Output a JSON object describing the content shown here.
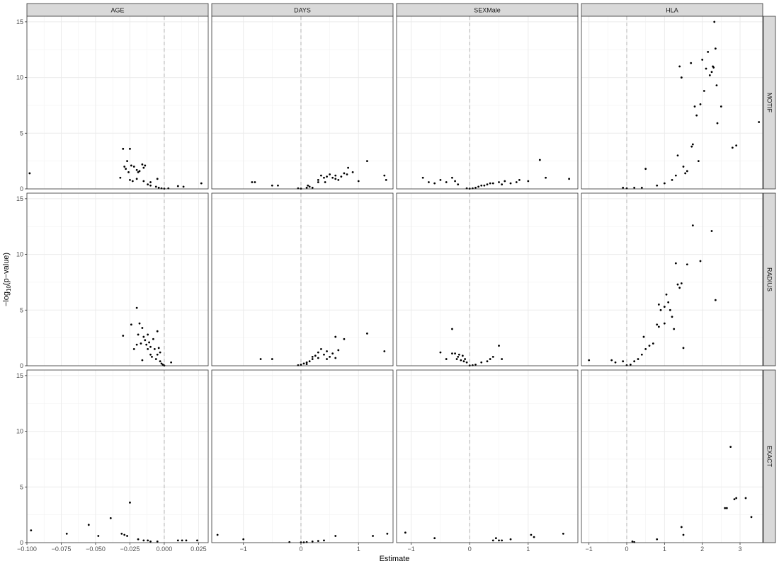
{
  "chart_data": {
    "type": "scatter",
    "xlabel": "Estimate",
    "ylabel": "-log10(p-value)",
    "ylim": [
      0,
      15.5
    ],
    "y_ticks": [
      0,
      5,
      10,
      15
    ],
    "grid": true,
    "reference_line_x": 0,
    "columns": [
      {
        "name": "AGE",
        "xlim": [
          -0.1,
          0.032
        ],
        "x_ticks": [
          -0.1,
          -0.075,
          -0.05,
          -0.025,
          0.0,
          0.025
        ],
        "x_tick_labels": [
          "-0.100",
          "-0.075",
          "-0.050",
          "-0.025",
          "0.000",
          "0.025"
        ]
      },
      {
        "name": "DAYS",
        "xlim": [
          -1.55,
          1.6
        ],
        "x_ticks": [
          -1,
          0,
          1
        ],
        "x_tick_labels": [
          "-1",
          "0",
          "1"
        ]
      },
      {
        "name": "SEXMale",
        "xlim": [
          -1.25,
          1.85
        ],
        "x_ticks": [
          -1,
          0,
          1
        ],
        "x_tick_labels": [
          "-1",
          "0",
          "1"
        ]
      },
      {
        "name": "HLA",
        "xlim": [
          -1.2,
          3.6
        ],
        "x_ticks": [
          -1,
          0,
          1,
          2,
          3
        ],
        "x_tick_labels": [
          "-1",
          "0",
          "1",
          "2",
          "3"
        ]
      }
    ],
    "rows": [
      "MOTIF",
      "RADIUS",
      "EXACT"
    ],
    "panels": {
      "MOTIF": {
        "AGE": [
          [
            -0.098,
            1.4
          ],
          [
            -0.03,
            3.6
          ],
          [
            -0.025,
            3.6
          ],
          [
            -0.029,
            2.0
          ],
          [
            -0.027,
            2.5
          ],
          [
            -0.028,
            1.8
          ],
          [
            -0.026,
            1.5
          ],
          [
            -0.024,
            2.1
          ],
          [
            -0.022,
            2.0
          ],
          [
            -0.02,
            1.7
          ],
          [
            -0.019,
            1.5
          ],
          [
            -0.018,
            1.6
          ],
          [
            -0.016,
            2.2
          ],
          [
            -0.014,
            2.1
          ],
          [
            -0.015,
            1.9
          ],
          [
            -0.025,
            0.8
          ],
          [
            -0.023,
            0.7
          ],
          [
            -0.02,
            0.9
          ],
          [
            -0.015,
            0.7
          ],
          [
            -0.01,
            0.6
          ],
          [
            -0.01,
            0.3
          ],
          [
            -0.005,
            0.9
          ],
          [
            -0.006,
            0.2
          ],
          [
            -0.004,
            0.1
          ],
          [
            -0.002,
            0.05
          ],
          [
            0.0,
            0.02
          ],
          [
            0.003,
            0.05
          ],
          [
            0.01,
            0.25
          ],
          [
            0.014,
            0.2
          ],
          [
            0.027,
            0.5
          ],
          [
            -0.032,
            1.0
          ],
          [
            -0.012,
            0.4
          ]
        ],
        "DAYS": [
          [
            -0.85,
            0.6
          ],
          [
            -0.8,
            0.6
          ],
          [
            -0.5,
            0.3
          ],
          [
            -0.4,
            0.3
          ],
          [
            -0.05,
            0.05
          ],
          [
            0.0,
            0.02
          ],
          [
            0.1,
            0.1
          ],
          [
            0.15,
            0.2
          ],
          [
            0.12,
            0.3
          ],
          [
            0.2,
            0.1
          ],
          [
            0.3,
            0.6
          ],
          [
            0.35,
            1.2
          ],
          [
            0.4,
            1.0
          ],
          [
            0.45,
            1.1
          ],
          [
            0.5,
            1.3
          ],
          [
            0.55,
            1.0
          ],
          [
            0.6,
            1.2
          ],
          [
            0.65,
            0.8
          ],
          [
            0.7,
            1.1
          ],
          [
            0.75,
            1.4
          ],
          [
            0.8,
            1.3
          ],
          [
            0.82,
            1.9
          ],
          [
            0.9,
            1.5
          ],
          [
            1.0,
            0.7
          ],
          [
            1.15,
            2.5
          ],
          [
            1.45,
            1.2
          ],
          [
            1.48,
            0.8
          ],
          [
            0.3,
            0.8
          ],
          [
            0.42,
            0.6
          ],
          [
            0.6,
            0.9
          ]
        ],
        "SEXMale": [
          [
            -0.8,
            1.0
          ],
          [
            -0.7,
            0.6
          ],
          [
            -0.6,
            0.5
          ],
          [
            -0.5,
            0.8
          ],
          [
            -0.4,
            0.6
          ],
          [
            -0.3,
            1.0
          ],
          [
            -0.25,
            0.7
          ],
          [
            -0.2,
            0.4
          ],
          [
            -0.05,
            0.05
          ],
          [
            0.0,
            0.02
          ],
          [
            0.05,
            0.05
          ],
          [
            0.15,
            0.2
          ],
          [
            0.2,
            0.3
          ],
          [
            0.25,
            0.3
          ],
          [
            0.3,
            0.4
          ],
          [
            0.35,
            0.5
          ],
          [
            0.4,
            0.5
          ],
          [
            0.5,
            0.6
          ],
          [
            0.6,
            0.7
          ],
          [
            0.7,
            0.5
          ],
          [
            0.8,
            0.6
          ],
          [
            0.85,
            0.8
          ],
          [
            1.0,
            0.7
          ],
          [
            1.2,
            2.6
          ],
          [
            1.3,
            1.0
          ],
          [
            1.7,
            0.9
          ],
          [
            0.55,
            0.4
          ],
          [
            0.1,
            0.1
          ]
        ],
        "HLA": [
          [
            -0.1,
            0.1
          ],
          [
            0.0,
            0.05
          ],
          [
            0.2,
            0.1
          ],
          [
            0.4,
            0.1
          ],
          [
            0.5,
            1.8
          ],
          [
            0.8,
            0.3
          ],
          [
            1.0,
            0.5
          ],
          [
            1.2,
            0.8
          ],
          [
            1.3,
            1.2
          ],
          [
            1.35,
            3.0
          ],
          [
            1.4,
            11.0
          ],
          [
            1.45,
            10.0
          ],
          [
            1.5,
            2.0
          ],
          [
            1.55,
            1.4
          ],
          [
            1.6,
            1.6
          ],
          [
            1.7,
            11.3
          ],
          [
            1.75,
            4.0
          ],
          [
            1.8,
            7.4
          ],
          [
            1.85,
            6.6
          ],
          [
            1.9,
            2.5
          ],
          [
            1.95,
            7.6
          ],
          [
            2.0,
            11.6
          ],
          [
            2.05,
            8.8
          ],
          [
            2.1,
            10.8
          ],
          [
            2.15,
            12.3
          ],
          [
            2.2,
            10.2
          ],
          [
            2.25,
            10.5
          ],
          [
            2.3,
            10.9
          ],
          [
            2.32,
            15.0
          ],
          [
            2.35,
            12.6
          ],
          [
            2.38,
            9.3
          ],
          [
            2.4,
            5.9
          ],
          [
            2.5,
            7.4
          ],
          [
            2.8,
            3.7
          ],
          [
            2.9,
            3.9
          ],
          [
            3.5,
            6.0
          ],
          [
            1.72,
            3.8
          ],
          [
            2.28,
            11.0
          ]
        ]
      },
      "RADIUS": {
        "AGE": [
          [
            -0.03,
            2.7
          ],
          [
            -0.024,
            3.7
          ],
          [
            -0.022,
            1.5
          ],
          [
            -0.02,
            5.2
          ],
          [
            -0.019,
            2.8
          ],
          [
            -0.018,
            3.8
          ],
          [
            -0.017,
            2.0
          ],
          [
            -0.016,
            3.4
          ],
          [
            -0.015,
            2.6
          ],
          [
            -0.014,
            2.3
          ],
          [
            -0.013,
            1.9
          ],
          [
            -0.012,
            2.8
          ],
          [
            -0.012,
            1.5
          ],
          [
            -0.011,
            2.1
          ],
          [
            -0.01,
            1.7
          ],
          [
            -0.01,
            1.0
          ],
          [
            -0.009,
            0.8
          ],
          [
            -0.008,
            2.4
          ],
          [
            -0.007,
            1.5
          ],
          [
            -0.006,
            0.6
          ],
          [
            -0.005,
            3.1
          ],
          [
            -0.005,
            1.0
          ],
          [
            -0.004,
            1.6
          ],
          [
            -0.003,
            0.4
          ],
          [
            -0.002,
            0.2
          ],
          [
            -0.001,
            0.1
          ],
          [
            0.0,
            0.02
          ],
          [
            0.005,
            0.3
          ],
          [
            -0.016,
            0.5
          ],
          [
            -0.02,
            1.9
          ],
          [
            -0.003,
            1.2
          ]
        ],
        "DAYS": [
          [
            -0.7,
            0.6
          ],
          [
            -0.5,
            0.6
          ],
          [
            -0.05,
            0.05
          ],
          [
            0.0,
            0.1
          ],
          [
            0.05,
            0.2
          ],
          [
            0.1,
            0.3
          ],
          [
            0.15,
            0.4
          ],
          [
            0.2,
            0.6
          ],
          [
            0.25,
            0.9
          ],
          [
            0.3,
            1.2
          ],
          [
            0.35,
            1.5
          ],
          [
            0.4,
            1.0
          ],
          [
            0.45,
            1.3
          ],
          [
            0.5,
            0.8
          ],
          [
            0.55,
            1.1
          ],
          [
            0.6,
            2.6
          ],
          [
            0.65,
            1.4
          ],
          [
            0.75,
            2.4
          ],
          [
            1.15,
            2.9
          ],
          [
            1.45,
            1.3
          ],
          [
            0.2,
            0.8
          ],
          [
            0.3,
            0.7
          ],
          [
            0.45,
            0.6
          ],
          [
            0.6,
            0.7
          ],
          [
            0.1,
            0.15
          ]
        ],
        "SEXMale": [
          [
            -0.5,
            1.2
          ],
          [
            -0.4,
            0.6
          ],
          [
            -0.3,
            3.3
          ],
          [
            -0.25,
            1.1
          ],
          [
            -0.2,
            0.8
          ],
          [
            -0.18,
            1.0
          ],
          [
            -0.15,
            0.5
          ],
          [
            -0.12,
            0.9
          ],
          [
            -0.1,
            0.4
          ],
          [
            -0.08,
            0.6
          ],
          [
            -0.05,
            0.3
          ],
          [
            0.0,
            0.02
          ],
          [
            0.05,
            0.05
          ],
          [
            0.1,
            0.1
          ],
          [
            0.2,
            0.3
          ],
          [
            0.3,
            0.4
          ],
          [
            0.35,
            0.6
          ],
          [
            0.4,
            0.8
          ],
          [
            0.5,
            1.8
          ],
          [
            0.55,
            0.6
          ],
          [
            -0.22,
            0.6
          ],
          [
            -0.3,
            1.1
          ]
        ],
        "HLA": [
          [
            -1.0,
            0.5
          ],
          [
            -0.4,
            0.5
          ],
          [
            -0.3,
            0.3
          ],
          [
            -0.1,
            0.4
          ],
          [
            0.0,
            0.05
          ],
          [
            0.1,
            0.1
          ],
          [
            0.2,
            0.4
          ],
          [
            0.3,
            0.6
          ],
          [
            0.4,
            1.0
          ],
          [
            0.45,
            2.6
          ],
          [
            0.5,
            1.5
          ],
          [
            0.6,
            1.8
          ],
          [
            0.7,
            2.0
          ],
          [
            0.8,
            3.7
          ],
          [
            0.85,
            5.5
          ],
          [
            0.9,
            5.0
          ],
          [
            1.0,
            3.8
          ],
          [
            1.05,
            6.4
          ],
          [
            1.1,
            5.7
          ],
          [
            1.15,
            5.0
          ],
          [
            1.2,
            4.4
          ],
          [
            1.25,
            3.3
          ],
          [
            1.3,
            9.2
          ],
          [
            1.35,
            7.3
          ],
          [
            1.4,
            7.0
          ],
          [
            1.45,
            7.4
          ],
          [
            1.5,
            1.6
          ],
          [
            1.6,
            9.1
          ],
          [
            1.75,
            12.6
          ],
          [
            1.95,
            9.4
          ],
          [
            2.25,
            12.1
          ],
          [
            2.35,
            5.9
          ],
          [
            1.0,
            5.3
          ],
          [
            0.85,
            3.5
          ]
        ]
      },
      "EXACT": {
        "AGE": [
          [
            -0.097,
            1.1
          ],
          [
            -0.071,
            0.8
          ],
          [
            -0.055,
            1.6
          ],
          [
            -0.048,
            0.6
          ],
          [
            -0.039,
            2.2
          ],
          [
            -0.031,
            0.8
          ],
          [
            -0.027,
            0.6
          ],
          [
            -0.025,
            3.6
          ],
          [
            -0.019,
            0.3
          ],
          [
            -0.015,
            0.2
          ],
          [
            -0.012,
            0.2
          ],
          [
            -0.01,
            0.1
          ],
          [
            -0.005,
            0.1
          ],
          [
            0.01,
            0.2
          ],
          [
            0.013,
            0.2
          ],
          [
            0.016,
            0.2
          ],
          [
            0.024,
            0.2
          ],
          [
            -0.029,
            0.7
          ]
        ],
        "DAYS": [
          [
            -1.45,
            0.7
          ],
          [
            -1.0,
            0.3
          ],
          [
            -0.2,
            0.05
          ],
          [
            0.0,
            0.02
          ],
          [
            0.05,
            0.02
          ],
          [
            0.1,
            0.05
          ],
          [
            0.2,
            0.1
          ],
          [
            0.3,
            0.15
          ],
          [
            0.4,
            0.2
          ],
          [
            0.6,
            0.6
          ],
          [
            1.25,
            0.6
          ],
          [
            1.5,
            0.8
          ]
        ],
        "SEXMale": [
          [
            -1.1,
            0.9
          ],
          [
            -0.6,
            0.4
          ],
          [
            0.4,
            0.2
          ],
          [
            0.45,
            0.4
          ],
          [
            0.5,
            0.2
          ],
          [
            0.55,
            0.2
          ],
          [
            0.7,
            0.3
          ],
          [
            1.05,
            0.7
          ],
          [
            1.1,
            0.5
          ],
          [
            1.6,
            0.8
          ]
        ],
        "HLA": [
          [
            0.15,
            0.1
          ],
          [
            0.2,
            0.05
          ],
          [
            0.8,
            0.3
          ],
          [
            1.45,
            1.4
          ],
          [
            1.5,
            0.7
          ],
          [
            2.6,
            3.1
          ],
          [
            2.65,
            3.1
          ],
          [
            2.75,
            8.6
          ],
          [
            2.85,
            3.9
          ],
          [
            2.9,
            4.0
          ],
          [
            3.15,
            4.0
          ],
          [
            3.3,
            2.3
          ]
        ]
      }
    }
  }
}
